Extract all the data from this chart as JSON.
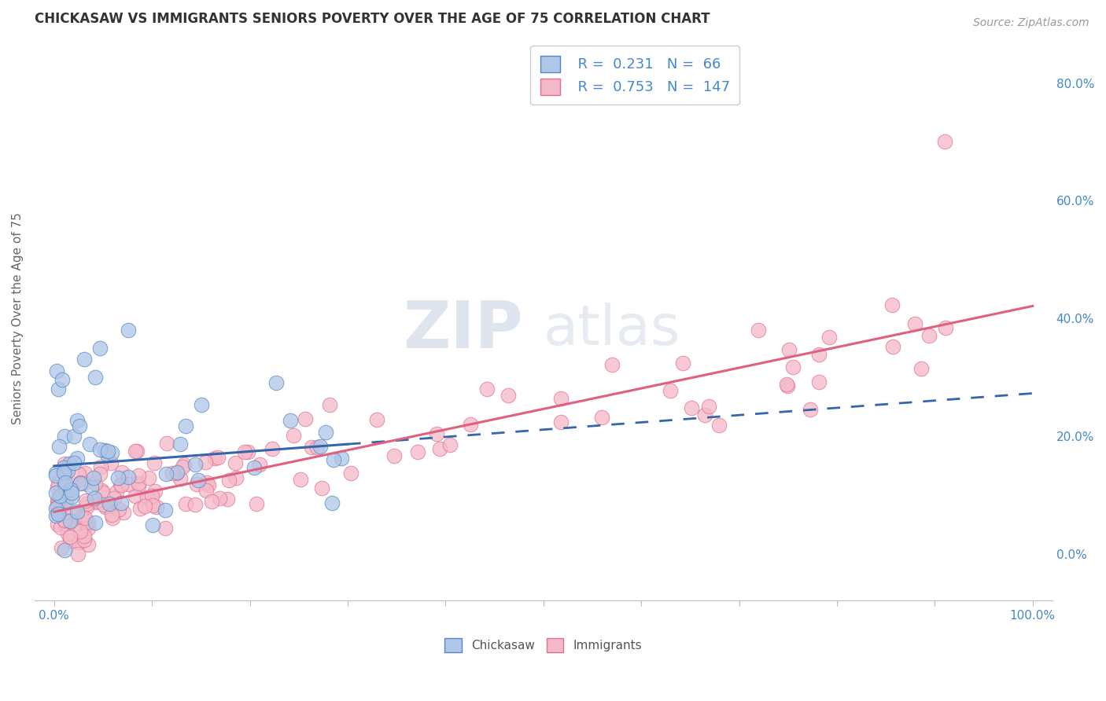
{
  "title": "CHICKASAW VS IMMIGRANTS SENIORS POVERTY OVER THE AGE OF 75 CORRELATION CHART",
  "source_text": "Source: ZipAtlas.com",
  "ylabel": "Seniors Poverty Over the Age of 75",
  "watermark_zip": "ZIP",
  "watermark_atlas": "atlas",
  "series1_name": "Chickasaw",
  "series1_R": "0.231",
  "series1_N": "66",
  "series1_fill": "#aec6e8",
  "series1_edge": "#5588bb",
  "series1_line": "#3366aa",
  "series2_name": "Immigrants",
  "series2_R": "0.753",
  "series2_N": "147",
  "series2_fill": "#f5b8c8",
  "series2_edge": "#e07090",
  "series2_line": "#e06080",
  "bg_color": "#ffffff",
  "grid_color": "#cccccc",
  "title_color": "#333333",
  "tick_color": "#4488cc",
  "legend_label_color": "#333333",
  "source_color": "#999999",
  "title_fontsize": 12,
  "axis_label_fontsize": 11,
  "tick_fontsize": 11,
  "legend_fontsize": 13,
  "watermark_fontsize_zip": 60,
  "watermark_fontsize_atlas": 52
}
